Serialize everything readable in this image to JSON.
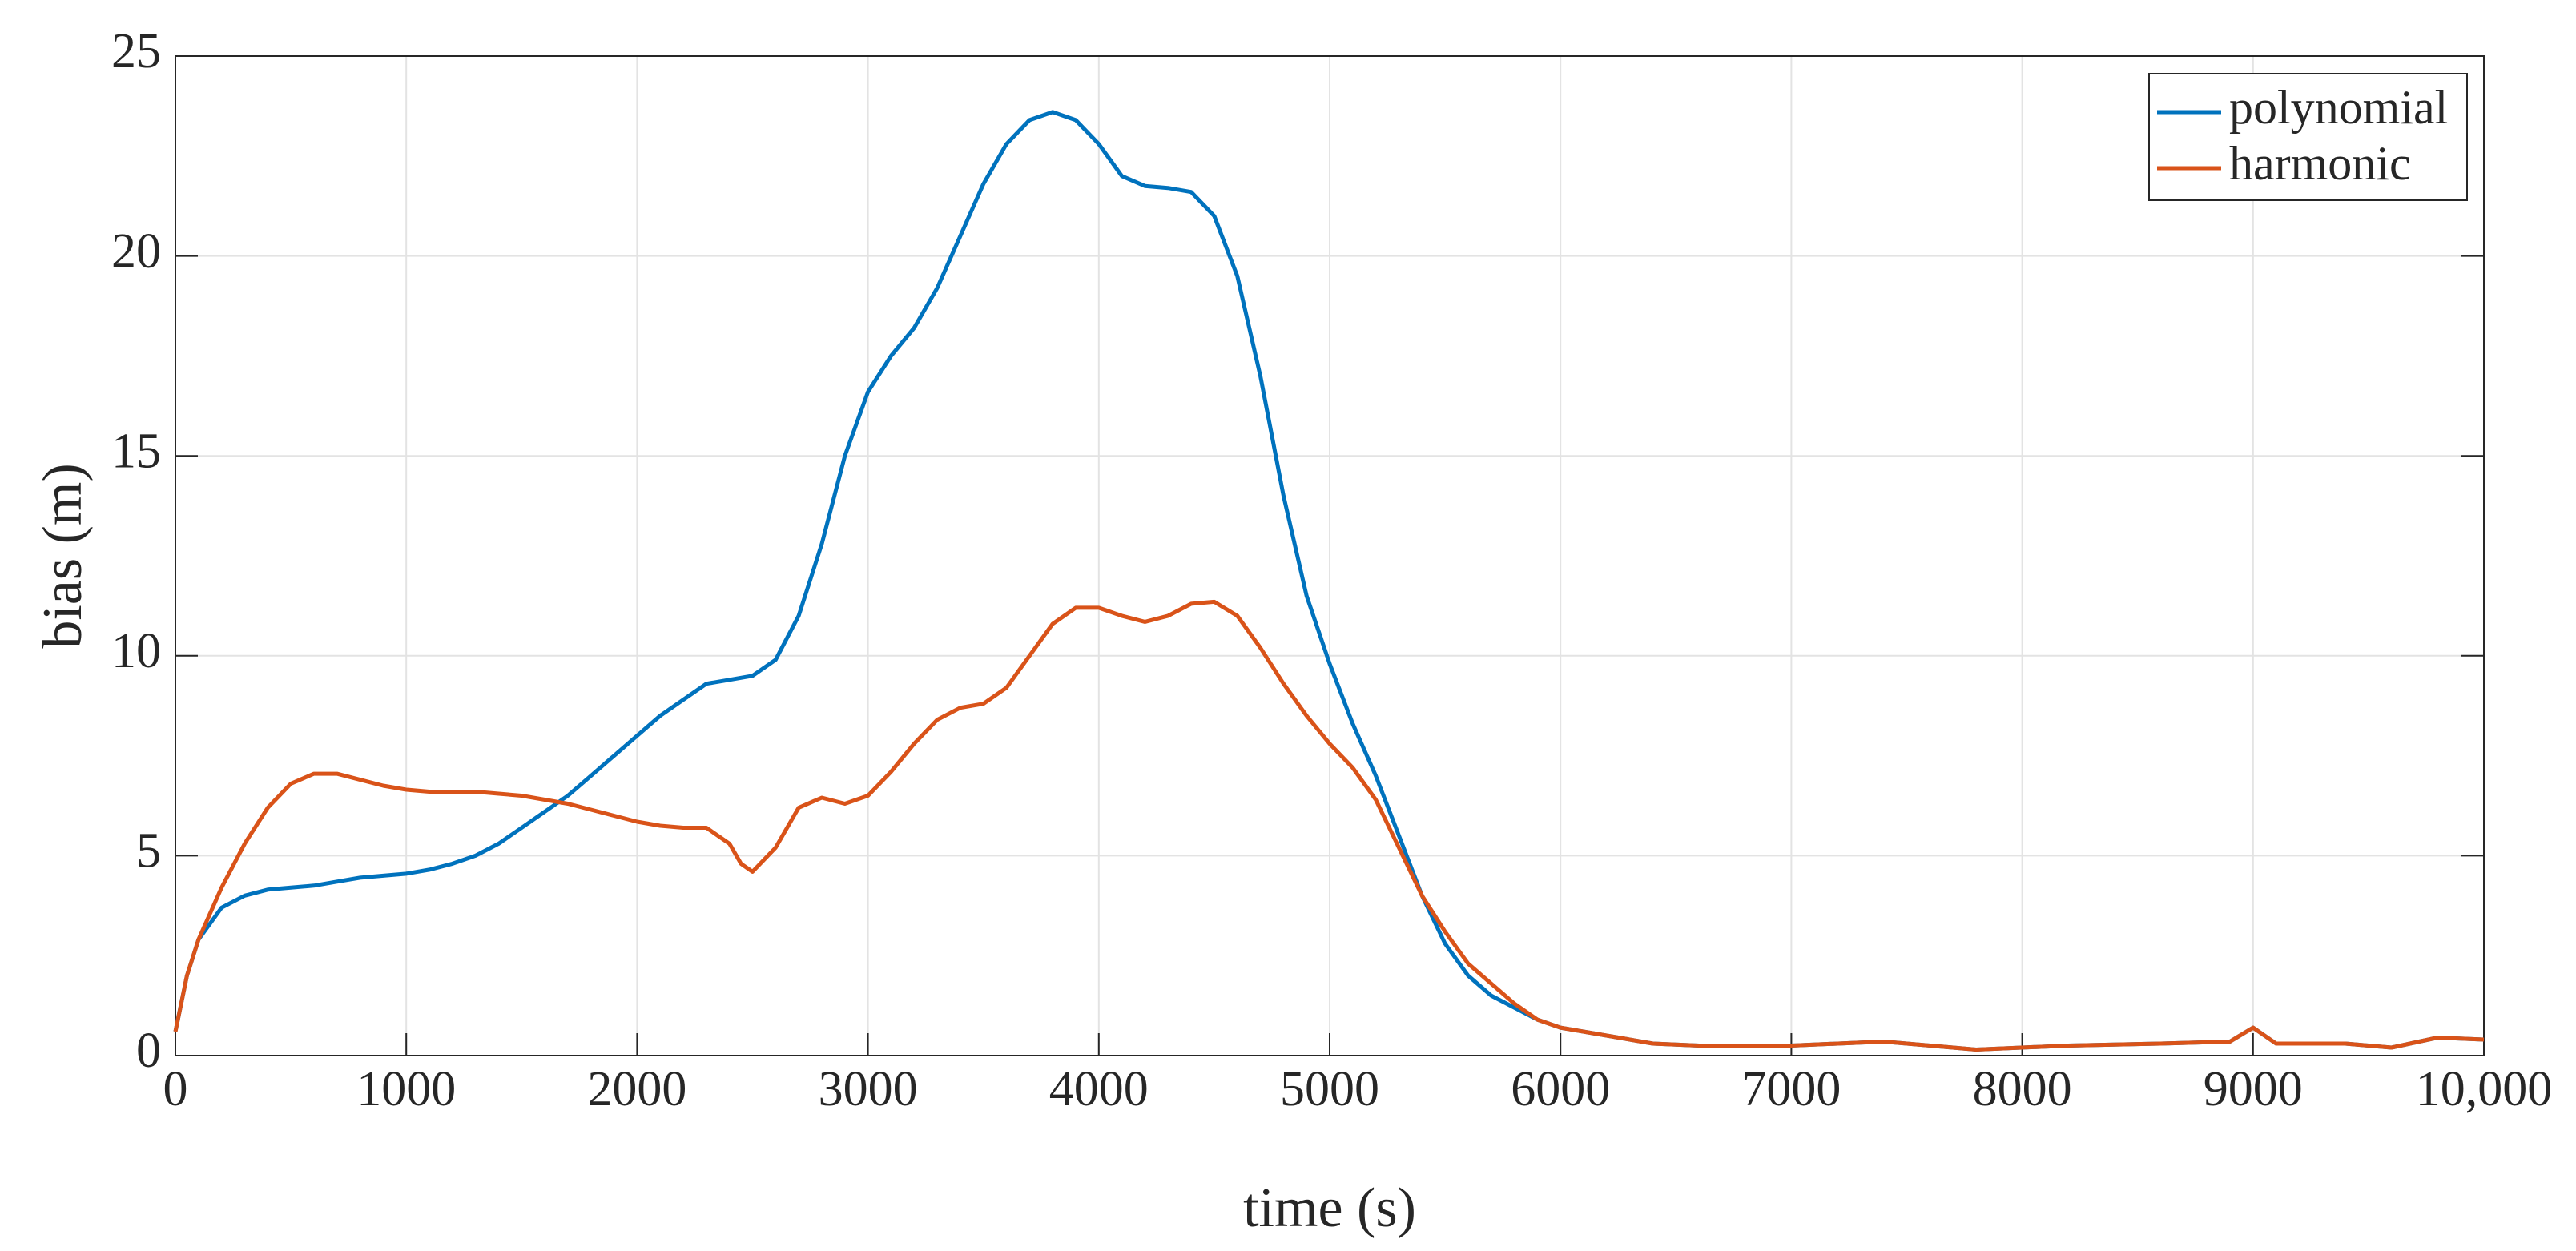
{
  "chart_data": {
    "type": "line",
    "xlabel": "time (s)",
    "ylabel": "bias (m)",
    "x": [
      0,
      50,
      100,
      200,
      300,
      400,
      500,
      600,
      700,
      800,
      900,
      1000,
      1100,
      1200,
      1300,
      1400,
      1500,
      1600,
      1700,
      1800,
      1900,
      2000,
      2100,
      2200,
      2300,
      2400,
      2450,
      2500,
      2600,
      2700,
      2800,
      2900,
      3000,
      3100,
      3200,
      3300,
      3400,
      3500,
      3600,
      3700,
      3800,
      3900,
      4000,
      4100,
      4200,
      4300,
      4400,
      4500,
      4600,
      4700,
      4800,
      4900,
      5000,
      5100,
      5200,
      5300,
      5400,
      5500,
      5600,
      5700,
      5800,
      5900,
      6000,
      6200,
      6400,
      6600,
      7000,
      7400,
      7800,
      8200,
      8600,
      8900,
      9000,
      9100,
      9400,
      9600,
      9800,
      10000
    ],
    "series": [
      {
        "name": "polynomial",
        "color": "#0072bd",
        "values": [
          0.6,
          2.0,
          2.9,
          3.7,
          4.0,
          4.15,
          4.2,
          4.25,
          4.35,
          4.45,
          4.5,
          4.55,
          4.65,
          4.8,
          5.0,
          5.3,
          5.7,
          6.1,
          6.5,
          7.0,
          7.5,
          8.0,
          8.5,
          8.9,
          9.3,
          9.4,
          9.45,
          9.5,
          9.9,
          11.0,
          12.8,
          15.0,
          16.6,
          17.5,
          18.2,
          19.2,
          20.5,
          21.8,
          22.8,
          23.4,
          23.6,
          23.4,
          22.8,
          22.0,
          21.75,
          21.7,
          21.6,
          21.0,
          19.5,
          17.0,
          14.0,
          11.5,
          9.8,
          8.3,
          7.0,
          5.5,
          4.0,
          2.8,
          2.0,
          1.5,
          1.2,
          0.9,
          0.7,
          0.5,
          0.3,
          0.25,
          0.25,
          0.35,
          0.15,
          0.25,
          0.3,
          0.35,
          0.7,
          0.3,
          0.3,
          0.2,
          0.45,
          0.4
        ]
      },
      {
        "name": "harmonic",
        "color": "#d95319",
        "values": [
          0.6,
          2.0,
          2.9,
          4.2,
          5.3,
          6.2,
          6.8,
          7.05,
          7.05,
          6.9,
          6.75,
          6.65,
          6.6,
          6.6,
          6.6,
          6.55,
          6.5,
          6.4,
          6.3,
          6.15,
          6.0,
          5.85,
          5.75,
          5.7,
          5.7,
          5.3,
          4.8,
          4.6,
          5.2,
          6.2,
          6.45,
          6.3,
          6.5,
          7.1,
          7.8,
          8.4,
          8.7,
          8.8,
          9.2,
          10.0,
          10.8,
          11.2,
          11.2,
          11.0,
          10.85,
          11.0,
          11.3,
          11.35,
          11.0,
          10.2,
          9.3,
          8.5,
          7.8,
          7.2,
          6.4,
          5.2,
          4.0,
          3.1,
          2.3,
          1.8,
          1.3,
          0.9,
          0.7,
          0.5,
          0.3,
          0.25,
          0.25,
          0.35,
          0.15,
          0.25,
          0.3,
          0.35,
          0.7,
          0.3,
          0.3,
          0.2,
          0.45,
          0.4
        ]
      }
    ],
    "xlim": [
      0,
      10000
    ],
    "xticks": [
      0,
      1000,
      2000,
      3000,
      4000,
      5000,
      6000,
      7000,
      8000,
      9000,
      {
        "value": 10000,
        "label": "10,000"
      }
    ],
    "ylim": [
      0,
      25
    ],
    "yticks": [
      0,
      5,
      10,
      15,
      20,
      25
    ],
    "grid": true,
    "legend": "northeast"
  }
}
